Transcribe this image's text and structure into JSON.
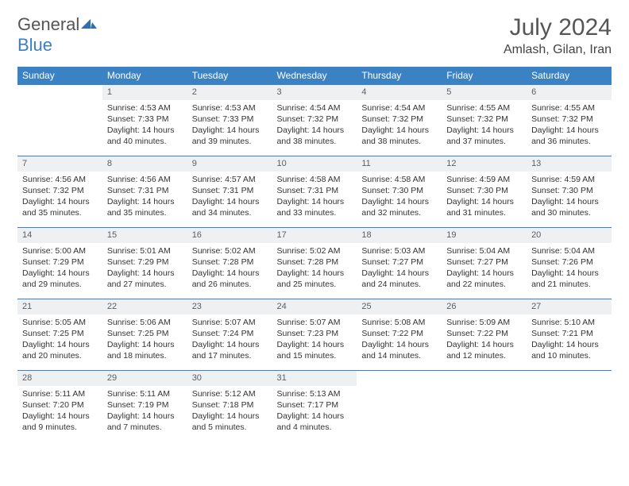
{
  "logo": {
    "text1": "General",
    "text2": "Blue"
  },
  "title": "July 2024",
  "location": "Amlash, Gilan, Iran",
  "weekdays": [
    "Sunday",
    "Monday",
    "Tuesday",
    "Wednesday",
    "Thursday",
    "Friday",
    "Saturday"
  ],
  "colors": {
    "header_bg": "#3b82c4",
    "header_fg": "#ffffff",
    "daynum_bg": "#eef0f2",
    "border": "#3b82c4",
    "text": "#333333",
    "logo_gray": "#555555",
    "logo_blue": "#3b7fc4"
  },
  "weeks": [
    [
      null,
      {
        "n": "1",
        "sr": "Sunrise: 4:53 AM",
        "ss": "Sunset: 7:33 PM",
        "d1": "Daylight: 14 hours",
        "d2": "and 40 minutes."
      },
      {
        "n": "2",
        "sr": "Sunrise: 4:53 AM",
        "ss": "Sunset: 7:33 PM",
        "d1": "Daylight: 14 hours",
        "d2": "and 39 minutes."
      },
      {
        "n": "3",
        "sr": "Sunrise: 4:54 AM",
        "ss": "Sunset: 7:32 PM",
        "d1": "Daylight: 14 hours",
        "d2": "and 38 minutes."
      },
      {
        "n": "4",
        "sr": "Sunrise: 4:54 AM",
        "ss": "Sunset: 7:32 PM",
        "d1": "Daylight: 14 hours",
        "d2": "and 38 minutes."
      },
      {
        "n": "5",
        "sr": "Sunrise: 4:55 AM",
        "ss": "Sunset: 7:32 PM",
        "d1": "Daylight: 14 hours",
        "d2": "and 37 minutes."
      },
      {
        "n": "6",
        "sr": "Sunrise: 4:55 AM",
        "ss": "Sunset: 7:32 PM",
        "d1": "Daylight: 14 hours",
        "d2": "and 36 minutes."
      }
    ],
    [
      {
        "n": "7",
        "sr": "Sunrise: 4:56 AM",
        "ss": "Sunset: 7:32 PM",
        "d1": "Daylight: 14 hours",
        "d2": "and 35 minutes."
      },
      {
        "n": "8",
        "sr": "Sunrise: 4:56 AM",
        "ss": "Sunset: 7:31 PM",
        "d1": "Daylight: 14 hours",
        "d2": "and 35 minutes."
      },
      {
        "n": "9",
        "sr": "Sunrise: 4:57 AM",
        "ss": "Sunset: 7:31 PM",
        "d1": "Daylight: 14 hours",
        "d2": "and 34 minutes."
      },
      {
        "n": "10",
        "sr": "Sunrise: 4:58 AM",
        "ss": "Sunset: 7:31 PM",
        "d1": "Daylight: 14 hours",
        "d2": "and 33 minutes."
      },
      {
        "n": "11",
        "sr": "Sunrise: 4:58 AM",
        "ss": "Sunset: 7:30 PM",
        "d1": "Daylight: 14 hours",
        "d2": "and 32 minutes."
      },
      {
        "n": "12",
        "sr": "Sunrise: 4:59 AM",
        "ss": "Sunset: 7:30 PM",
        "d1": "Daylight: 14 hours",
        "d2": "and 31 minutes."
      },
      {
        "n": "13",
        "sr": "Sunrise: 4:59 AM",
        "ss": "Sunset: 7:30 PM",
        "d1": "Daylight: 14 hours",
        "d2": "and 30 minutes."
      }
    ],
    [
      {
        "n": "14",
        "sr": "Sunrise: 5:00 AM",
        "ss": "Sunset: 7:29 PM",
        "d1": "Daylight: 14 hours",
        "d2": "and 29 minutes."
      },
      {
        "n": "15",
        "sr": "Sunrise: 5:01 AM",
        "ss": "Sunset: 7:29 PM",
        "d1": "Daylight: 14 hours",
        "d2": "and 27 minutes."
      },
      {
        "n": "16",
        "sr": "Sunrise: 5:02 AM",
        "ss": "Sunset: 7:28 PM",
        "d1": "Daylight: 14 hours",
        "d2": "and 26 minutes."
      },
      {
        "n": "17",
        "sr": "Sunrise: 5:02 AM",
        "ss": "Sunset: 7:28 PM",
        "d1": "Daylight: 14 hours",
        "d2": "and 25 minutes."
      },
      {
        "n": "18",
        "sr": "Sunrise: 5:03 AM",
        "ss": "Sunset: 7:27 PM",
        "d1": "Daylight: 14 hours",
        "d2": "and 24 minutes."
      },
      {
        "n": "19",
        "sr": "Sunrise: 5:04 AM",
        "ss": "Sunset: 7:27 PM",
        "d1": "Daylight: 14 hours",
        "d2": "and 22 minutes."
      },
      {
        "n": "20",
        "sr": "Sunrise: 5:04 AM",
        "ss": "Sunset: 7:26 PM",
        "d1": "Daylight: 14 hours",
        "d2": "and 21 minutes."
      }
    ],
    [
      {
        "n": "21",
        "sr": "Sunrise: 5:05 AM",
        "ss": "Sunset: 7:25 PM",
        "d1": "Daylight: 14 hours",
        "d2": "and 20 minutes."
      },
      {
        "n": "22",
        "sr": "Sunrise: 5:06 AM",
        "ss": "Sunset: 7:25 PM",
        "d1": "Daylight: 14 hours",
        "d2": "and 18 minutes."
      },
      {
        "n": "23",
        "sr": "Sunrise: 5:07 AM",
        "ss": "Sunset: 7:24 PM",
        "d1": "Daylight: 14 hours",
        "d2": "and 17 minutes."
      },
      {
        "n": "24",
        "sr": "Sunrise: 5:07 AM",
        "ss": "Sunset: 7:23 PM",
        "d1": "Daylight: 14 hours",
        "d2": "and 15 minutes."
      },
      {
        "n": "25",
        "sr": "Sunrise: 5:08 AM",
        "ss": "Sunset: 7:22 PM",
        "d1": "Daylight: 14 hours",
        "d2": "and 14 minutes."
      },
      {
        "n": "26",
        "sr": "Sunrise: 5:09 AM",
        "ss": "Sunset: 7:22 PM",
        "d1": "Daylight: 14 hours",
        "d2": "and 12 minutes."
      },
      {
        "n": "27",
        "sr": "Sunrise: 5:10 AM",
        "ss": "Sunset: 7:21 PM",
        "d1": "Daylight: 14 hours",
        "d2": "and 10 minutes."
      }
    ],
    [
      {
        "n": "28",
        "sr": "Sunrise: 5:11 AM",
        "ss": "Sunset: 7:20 PM",
        "d1": "Daylight: 14 hours",
        "d2": "and 9 minutes."
      },
      {
        "n": "29",
        "sr": "Sunrise: 5:11 AM",
        "ss": "Sunset: 7:19 PM",
        "d1": "Daylight: 14 hours",
        "d2": "and 7 minutes."
      },
      {
        "n": "30",
        "sr": "Sunrise: 5:12 AM",
        "ss": "Sunset: 7:18 PM",
        "d1": "Daylight: 14 hours",
        "d2": "and 5 minutes."
      },
      {
        "n": "31",
        "sr": "Sunrise: 5:13 AM",
        "ss": "Sunset: 7:17 PM",
        "d1": "Daylight: 14 hours",
        "d2": "and 4 minutes."
      },
      null,
      null,
      null
    ]
  ]
}
